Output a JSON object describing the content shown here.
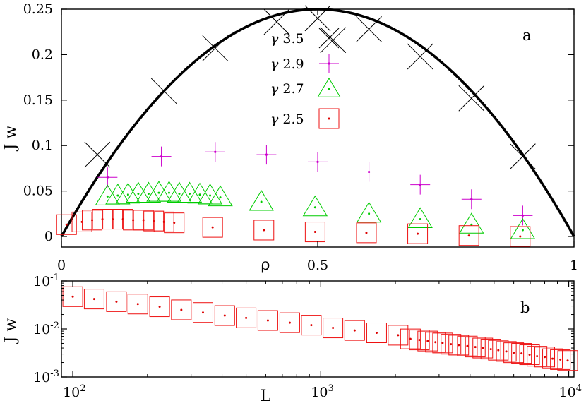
{
  "colors": {
    "curve": "#000000",
    "series_3_5": "#000000",
    "series_2_9": "#cc00cc",
    "series_2_7": "#00cc00",
    "series_2_5": "#ee1111",
    "dots": "#dd0000"
  },
  "panel_a": {
    "label": "a",
    "ylabel": "J w̅",
    "xlabel": "ρ",
    "x_ticks": [
      "0",
      "0.5",
      "1"
    ],
    "y_ticks": [
      "0",
      "0.05",
      "0.1",
      "0.15",
      "0.2",
      "0.25"
    ],
    "legend": [
      {
        "gamma": "γ",
        "value": "3.5"
      },
      {
        "gamma": "γ",
        "value": "2.9"
      },
      {
        "gamma": "γ",
        "value": "2.7"
      },
      {
        "gamma": "γ",
        "value": "2.5"
      }
    ]
  },
  "panel_b": {
    "label": "b",
    "ylabel": "J w̅",
    "xlabel": "L",
    "x_ticks": [
      {
        "base": "10",
        "exp": "2"
      },
      {
        "base": "10",
        "exp": "3"
      },
      {
        "base": "10",
        "exp": "4"
      }
    ],
    "y_ticks": [
      {
        "base": "10",
        "exp": "-1"
      },
      {
        "base": "10",
        "exp": "-2"
      },
      {
        "base": "10",
        "exp": "-3"
      }
    ]
  },
  "chart_data": [
    {
      "type": "scatter",
      "panel": "a",
      "xlim": [
        0,
        1
      ],
      "ylim": [
        0,
        0.25
      ],
      "xlabel": "ρ",
      "ylabel": "J w̅",
      "curve": {
        "formula": "rho*(1-rho)"
      },
      "series": [
        {
          "name": "γ 3.5",
          "marker": "x",
          "x": [
            0.07,
            0.2,
            0.3,
            0.42,
            0.5,
            0.53,
            0.6,
            0.7,
            0.8,
            0.9
          ],
          "y": [
            0.09,
            0.16,
            0.207,
            0.236,
            0.24,
            0.216,
            0.228,
            0.198,
            0.152,
            0.088
          ]
        },
        {
          "name": "γ 2.9",
          "marker": "plus",
          "x": [
            0.09,
            0.195,
            0.3,
            0.4,
            0.5,
            0.6,
            0.7,
            0.8,
            0.9
          ],
          "y": [
            0.065,
            0.088,
            0.093,
            0.09,
            0.082,
            0.071,
            0.057,
            0.041,
            0.023
          ]
        },
        {
          "name": "γ 2.7",
          "marker": "triangle",
          "x": [
            0.09,
            0.11,
            0.13,
            0.15,
            0.17,
            0.19,
            0.21,
            0.23,
            0.25,
            0.27,
            0.29,
            0.31,
            0.39,
            0.495,
            0.6,
            0.7,
            0.8,
            0.9
          ],
          "y": [
            0.044,
            0.045,
            0.046,
            0.047,
            0.047,
            0.048,
            0.048,
            0.047,
            0.047,
            0.046,
            0.045,
            0.043,
            0.038,
            0.032,
            0.025,
            0.019,
            0.013,
            0.007
          ],
          "marker_size": [
            1,
            1,
            1,
            1,
            1,
            1,
            1,
            1,
            1,
            1,
            1,
            1,
            1,
            1,
            1,
            1,
            1,
            1
          ]
        },
        {
          "name": "γ 2.5",
          "marker": "square",
          "x": [
            0.01,
            0.04,
            0.06,
            0.08,
            0.1,
            0.12,
            0.14,
            0.16,
            0.18,
            0.2,
            0.22,
            0.295,
            0.395,
            0.495,
            0.595,
            0.695,
            0.795,
            0.895
          ],
          "y": [
            0.013,
            0.016,
            0.018,
            0.019,
            0.019,
            0.019,
            0.018,
            0.018,
            0.017,
            0.016,
            0.015,
            0.01,
            0.007,
            0.005,
            0.004,
            0.003,
            0.001,
            0.0
          ]
        }
      ]
    },
    {
      "type": "scatter",
      "panel": "b",
      "xscale": "log",
      "yscale": "log",
      "xlim": [
        90,
        10500
      ],
      "ylim": [
        0.001,
        0.1
      ],
      "xlabel": "L",
      "ylabel": "J w̅",
      "series": [
        {
          "name": "γ 2.5",
          "marker": "square",
          "x": [
            100,
            122,
            150,
            183,
            224,
            274,
            335,
            410,
            500,
            612,
            750,
            916,
            1120,
            1370,
            1680,
            2050,
            2300,
            2500,
            2700,
            2900,
            3100,
            3350,
            3600,
            3900,
            4200,
            4500,
            4850,
            5200,
            5600,
            6000,
            6450,
            6950,
            7450,
            8000,
            8600,
            9250,
            9900
          ],
          "y": [
            0.047,
            0.042,
            0.037,
            0.033,
            0.029,
            0.025,
            0.022,
            0.019,
            0.017,
            0.015,
            0.0135,
            0.012,
            0.0105,
            0.0093,
            0.0083,
            0.0074,
            0.0062,
            0.0059,
            0.0056,
            0.0053,
            0.0051,
            0.0048,
            0.0046,
            0.0044,
            0.0042,
            0.004,
            0.0038,
            0.0036,
            0.0034,
            0.0032,
            0.0031,
            0.0029,
            0.0027,
            0.0026,
            0.0024,
            0.0023,
            0.0022
          ]
        }
      ]
    }
  ]
}
